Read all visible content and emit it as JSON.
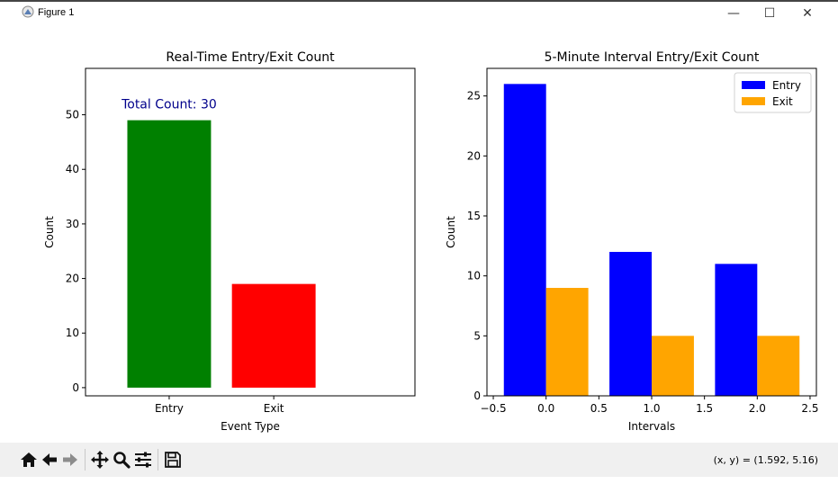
{
  "window": {
    "title": "Figure 1",
    "minimize_label": "—",
    "maximize_label": "☐",
    "close_label": "✕",
    "icons": [
      "figure-icon"
    ]
  },
  "toolbar": {
    "icons": [
      "home-icon",
      "back-icon",
      "forward-icon",
      "pan-icon",
      "zoom-icon",
      "configure-subplots-icon",
      "save-icon"
    ],
    "coords_text": "(x, y) = (1.592, 5.16)"
  },
  "chart_data": [
    {
      "type": "bar",
      "title": "Real-Time Entry/Exit Count",
      "xlabel": "Event Type",
      "ylabel": "Count",
      "categories": [
        "Entry",
        "Exit"
      ],
      "values": [
        49,
        19
      ],
      "colors": [
        "#008000",
        "#ff0000"
      ],
      "annotation": "Total Count: 30",
      "annotation_color": "#00008b",
      "xlim": [
        -0.8,
        2.35
      ],
      "ylim": [
        -1.5,
        58.5
      ],
      "yticks": [
        0,
        10,
        20,
        30,
        40,
        50
      ],
      "ytick_labels": [
        "0",
        "10",
        "20",
        "30",
        "40",
        "50"
      ],
      "grid": false
    },
    {
      "type": "bar",
      "title": "5-Minute Interval Entry/Exit Count",
      "xlabel": "Intervals",
      "ylabel": "Count",
      "x": [
        0,
        1,
        2
      ],
      "bar_width": 0.4,
      "series": [
        {
          "name": "Entry",
          "values": [
            26,
            12,
            11
          ],
          "color": "#0000ff"
        },
        {
          "name": "Exit",
          "values": [
            9,
            5,
            5
          ],
          "color": "#ffa500"
        }
      ],
      "xlim": [
        -0.56,
        2.56
      ],
      "ylim": [
        0,
        27.3
      ],
      "xticks": [
        -0.5,
        0.0,
        0.5,
        1.0,
        1.5,
        2.0,
        2.5
      ],
      "xtick_labels": [
        "−0.5",
        "0.0",
        "0.5",
        "1.0",
        "1.5",
        "2.0",
        "2.5"
      ],
      "yticks": [
        0,
        5,
        10,
        15,
        20,
        25
      ],
      "ytick_labels": [
        "0",
        "5",
        "10",
        "15",
        "20",
        "25"
      ],
      "legend_position": "upper-right",
      "grid": false
    }
  ]
}
